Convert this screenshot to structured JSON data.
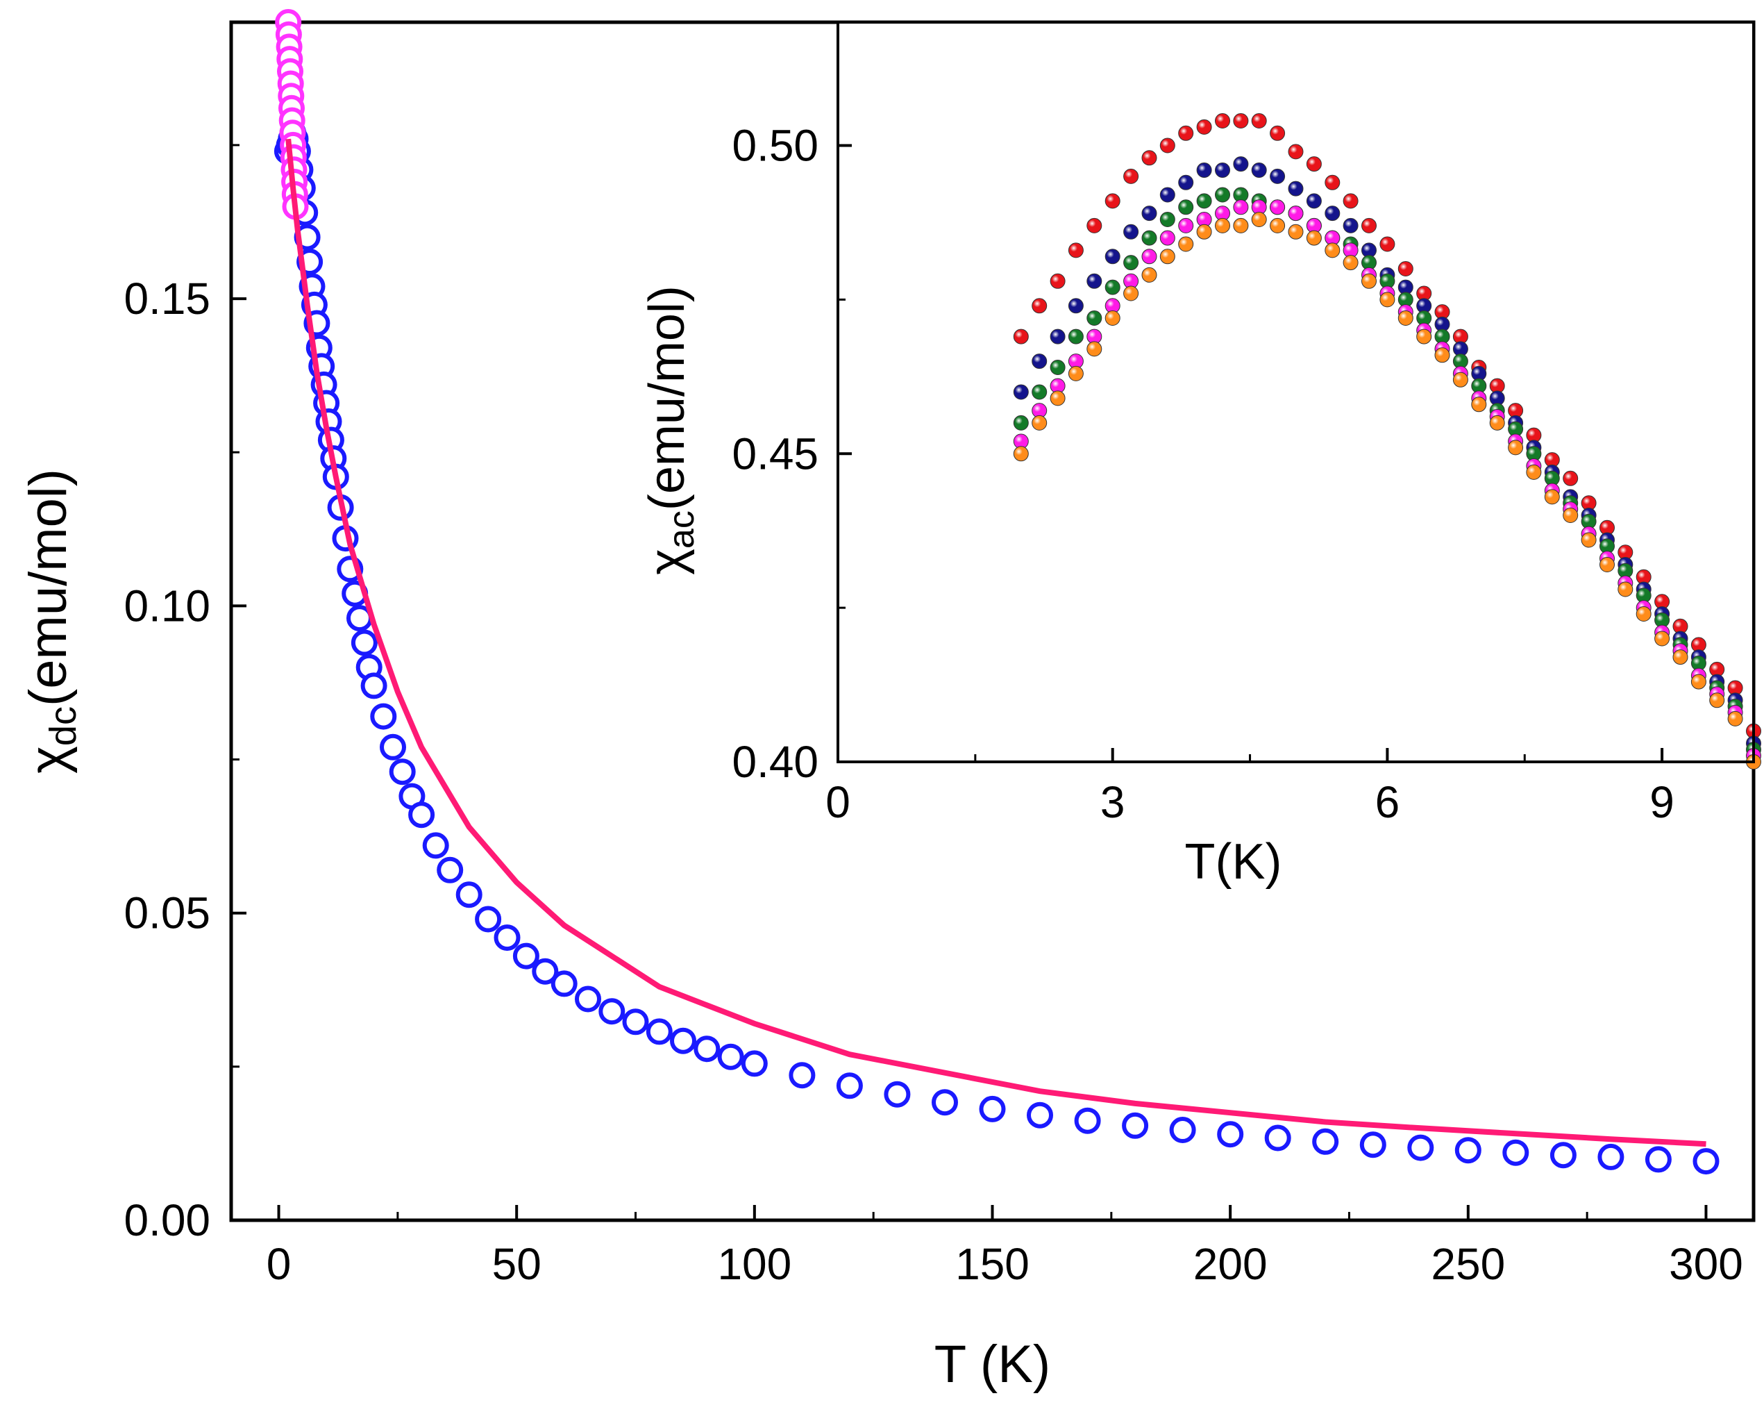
{
  "chart_data": [
    {
      "id": "main",
      "type": "scatter",
      "xlabel": "T (K)",
      "ylabel": {
        "symbol": "χ",
        "subscript": "dc",
        "rest": "(emu/mol)"
      },
      "xlim": [
        -10,
        310
      ],
      "ylim": [
        0.0,
        0.195
      ],
      "xticks": [
        0,
        50,
        100,
        150,
        200,
        250,
        300
      ],
      "xtick_labels": [
        "0",
        "50",
        "100",
        "150",
        "200",
        "250",
        "300"
      ],
      "yticks": [
        0.0,
        0.05,
        0.1,
        0.15
      ],
      "ytick_labels": [
        "0.00",
        "0.05",
        "0.10",
        "0.15"
      ],
      "series": [
        {
          "name": "χdc data (blue)",
          "color": "#1a1aff",
          "marker": "open-circle",
          "x": [
            1.8,
            2.2,
            2.6,
            3.0,
            3.5,
            4.0,
            4.5,
            5.0,
            5.5,
            6.0,
            6.5,
            7.0,
            7.5,
            8.0,
            8.5,
            9.0,
            9.5,
            10.0,
            10.5,
            11.0,
            11.5,
            12.0,
            13,
            14,
            15,
            16,
            17,
            18,
            19,
            20,
            22,
            24,
            26,
            28,
            30,
            33,
            36,
            40,
            44,
            48,
            52,
            56,
            60,
            65,
            70,
            75,
            80,
            85,
            90,
            95,
            100,
            110,
            120,
            130,
            140,
            150,
            160,
            170,
            180,
            190,
            200,
            210,
            220,
            230,
            240,
            250,
            260,
            270,
            280,
            290,
            300
          ],
          "values": [
            0.174,
            0.175,
            0.176,
            0.177,
            0.176,
            0.174,
            0.171,
            0.168,
            0.164,
            0.16,
            0.156,
            0.152,
            0.149,
            0.146,
            0.142,
            0.139,
            0.136,
            0.133,
            0.13,
            0.127,
            0.124,
            0.121,
            0.116,
            0.111,
            0.106,
            0.102,
            0.098,
            0.094,
            0.09,
            0.087,
            0.082,
            0.077,
            0.073,
            0.069,
            0.066,
            0.061,
            0.057,
            0.053,
            0.049,
            0.046,
            0.043,
            0.0405,
            0.0385,
            0.036,
            0.034,
            0.0323,
            0.0307,
            0.0292,
            0.0279,
            0.0266,
            0.0255,
            0.0236,
            0.0219,
            0.0205,
            0.0192,
            0.0181,
            0.0171,
            0.0162,
            0.0154,
            0.0147,
            0.014,
            0.0134,
            0.0128,
            0.0123,
            0.0118,
            0.0114,
            0.011,
            0.0106,
            0.0103,
            0.0099,
            0.0096
          ]
        },
        {
          "name": "χdc low-T data (magenta)",
          "color": "#ff33ff",
          "marker": "open-circle",
          "x": [
            2.0,
            2.1,
            2.2,
            2.3,
            2.4,
            2.5,
            2.6,
            2.7,
            2.8,
            2.9,
            3.0,
            3.1,
            3.2,
            3.3,
            3.4,
            3.5
          ],
          "values": [
            0.195,
            0.193,
            0.191,
            0.189,
            0.187,
            0.185,
            0.183,
            0.181,
            0.179,
            0.177,
            0.175,
            0.173,
            0.171,
            0.169,
            0.167,
            0.165
          ]
        },
        {
          "name": "fit",
          "type": "line",
          "color": "#ff1a75",
          "x": [
            2,
            3,
            4,
            5,
            6,
            8,
            10,
            12,
            15,
            20,
            25,
            30,
            40,
            50,
            60,
            70,
            80,
            90,
            100,
            120,
            140,
            160,
            180,
            200,
            220,
            240,
            260,
            280,
            300
          ],
          "values": [
            0.176,
            0.168,
            0.161,
            0.155,
            0.149,
            0.138,
            0.129,
            0.121,
            0.11,
            0.097,
            0.086,
            0.077,
            0.064,
            0.055,
            0.048,
            0.043,
            0.038,
            0.035,
            0.032,
            0.027,
            0.024,
            0.021,
            0.019,
            0.0175,
            0.016,
            0.015,
            0.0141,
            0.0132,
            0.0124
          ]
        }
      ]
    },
    {
      "id": "inset",
      "type": "scatter",
      "xlabel": "T(K)",
      "ylabel": {
        "symbol": "χ",
        "subscript": "ac",
        "rest": "(emu/mol)"
      },
      "xlim": [
        0,
        10
      ],
      "ylim": [
        0.4,
        0.52
      ],
      "xticks": [
        0,
        3,
        6,
        9
      ],
      "xtick_labels": [
        "0",
        "3",
        "6",
        "9"
      ],
      "yticks": [
        0.4,
        0.45,
        0.5
      ],
      "ytick_labels": [
        "0.40",
        "0.45",
        "0.50"
      ],
      "x": [
        2.0,
        2.2,
        2.4,
        2.6,
        2.8,
        3.0,
        3.2,
        3.4,
        3.6,
        3.8,
        4.0,
        4.2,
        4.4,
        4.6,
        4.8,
        5.0,
        5.2,
        5.4,
        5.6,
        5.8,
        6.0,
        6.2,
        6.4,
        6.6,
        6.8,
        7.0,
        7.2,
        7.4,
        7.6,
        7.8,
        8.0,
        8.2,
        8.4,
        8.6,
        8.8,
        9.0,
        9.2,
        9.4,
        9.6,
        9.8,
        10.0
      ],
      "series": [
        {
          "name": "red",
          "color": "#e8141a",
          "values": [
            0.469,
            0.474,
            0.478,
            0.483,
            0.487,
            0.491,
            0.495,
            0.498,
            0.5,
            0.502,
            0.503,
            0.504,
            0.504,
            0.504,
            0.502,
            0.499,
            0.497,
            0.494,
            0.491,
            0.487,
            0.484,
            0.48,
            0.476,
            0.473,
            0.469,
            0.464,
            0.461,
            0.457,
            0.453,
            0.449,
            0.446,
            0.442,
            0.438,
            0.434,
            0.43,
            0.426,
            0.422,
            0.419,
            0.415,
            0.412,
            0.405
          ]
        },
        {
          "name": "navy",
          "color": "#14148c",
          "values": [
            0.46,
            0.465,
            0.469,
            0.474,
            0.478,
            0.482,
            0.486,
            0.489,
            0.492,
            0.494,
            0.496,
            0.496,
            0.497,
            0.496,
            0.495,
            0.493,
            0.491,
            0.489,
            0.487,
            0.483,
            0.479,
            0.477,
            0.474,
            0.471,
            0.467,
            0.463,
            0.459,
            0.455,
            0.451,
            0.447,
            0.443,
            0.44,
            0.436,
            0.432,
            0.428,
            0.424,
            0.42,
            0.417,
            0.413,
            0.41,
            0.403
          ]
        },
        {
          "name": "green",
          "color": "#147a28",
          "values": [
            0.455,
            0.46,
            0.464,
            0.469,
            0.472,
            0.477,
            0.481,
            0.485,
            0.488,
            0.49,
            0.491,
            0.492,
            0.492,
            0.491,
            0.49,
            0.489,
            0.487,
            0.485,
            0.484,
            0.481,
            0.478,
            0.475,
            0.472,
            0.469,
            0.465,
            0.461,
            0.457,
            0.454,
            0.45,
            0.446,
            0.442,
            0.439,
            0.435,
            0.431,
            0.427,
            0.423,
            0.419,
            0.416,
            0.412,
            0.409,
            0.402
          ]
        },
        {
          "name": "magenta",
          "color": "#ff1ae6",
          "values": [
            0.452,
            0.457,
            0.461,
            0.465,
            0.469,
            0.474,
            0.478,
            0.482,
            0.485,
            0.487,
            0.488,
            0.489,
            0.49,
            0.49,
            0.49,
            0.489,
            0.487,
            0.485,
            0.483,
            0.479,
            0.476,
            0.473,
            0.47,
            0.467,
            0.463,
            0.459,
            0.456,
            0.452,
            0.448,
            0.444,
            0.441,
            0.437,
            0.433,
            0.429,
            0.425,
            0.421,
            0.418,
            0.414,
            0.411,
            0.408,
            0.401
          ]
        },
        {
          "name": "orange",
          "color": "#ff8c1a",
          "values": [
            0.45,
            0.455,
            0.459,
            0.463,
            0.467,
            0.472,
            0.476,
            0.479,
            0.482,
            0.484,
            0.486,
            0.487,
            0.487,
            0.488,
            0.487,
            0.486,
            0.485,
            0.483,
            0.481,
            0.478,
            0.475,
            0.472,
            0.469,
            0.466,
            0.462,
            0.458,
            0.455,
            0.451,
            0.447,
            0.443,
            0.44,
            0.436,
            0.432,
            0.428,
            0.424,
            0.42,
            0.417,
            0.413,
            0.41,
            0.407,
            0.4
          ]
        }
      ]
    }
  ]
}
